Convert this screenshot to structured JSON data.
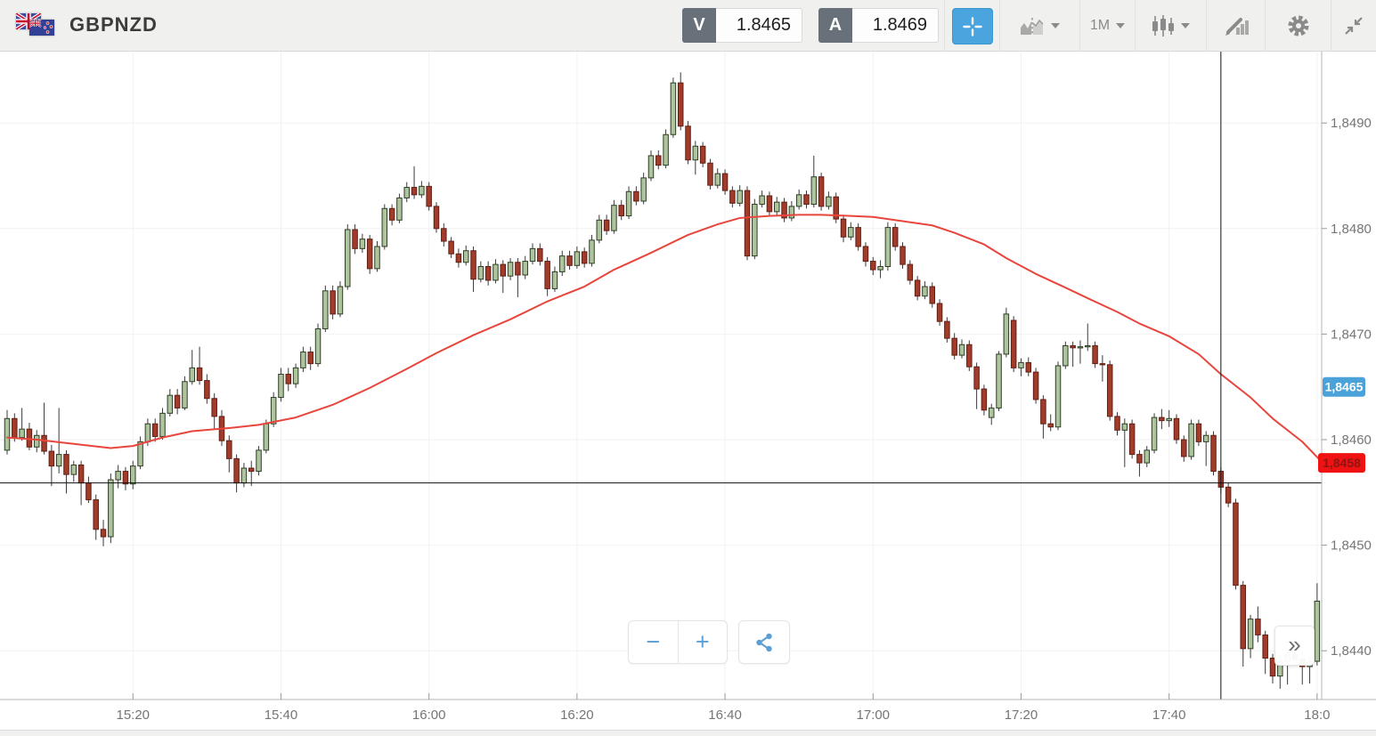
{
  "header": {
    "symbol": "GBPNZD",
    "bid_label": "V",
    "bid": "1.8465",
    "ask_label": "A",
    "ask": "1.8469"
  },
  "toolbar": {
    "timeframe_label": "1M",
    "icons": [
      "chart-style-icon",
      "timeframe-dropdown",
      "candlestick-style-icon",
      "drawing-tools-icon",
      "settings-gear-icon",
      "collapse-chart-icon"
    ]
  },
  "controls": {
    "zoom_out_label": "−",
    "zoom_in_label": "+",
    "share_icon": "share-icon",
    "collapse_label": "»"
  },
  "price_axis": {
    "labels": [
      "1,8490",
      "1,8480",
      "1,8470",
      "1,8460",
      "1,8450",
      "1,8440"
    ],
    "label_pips": [
      90,
      80,
      70,
      60,
      50,
      40
    ],
    "bid_badge": {
      "label": "1,8465",
      "pips": 65
    },
    "last_badge": {
      "label": "1,8458",
      "pips": 57.8
    }
  },
  "time_axis": {
    "labels": [
      "15:20",
      "15:40",
      "16:00",
      "16:20",
      "16:40",
      "17:00",
      "17:20",
      "17:40",
      "18:0"
    ],
    "indices": [
      17,
      37,
      57,
      77,
      97,
      117,
      137,
      157,
      177
    ]
  },
  "colors": {
    "accent_blue": "#4aa4dd",
    "quote_badge_gray": "#68717a",
    "candle_up_fill": "#adc49e",
    "candle_up_stroke": "#2f3d24",
    "candle_down_fill": "#a23b2a",
    "candle_down_stroke": "#5e2015",
    "wick": "#3a3a3a",
    "ma_line": "#e8463c",
    "marker_line": "#111111",
    "axis_text": "#757575",
    "grid_line": "#f2f2f1",
    "axis_line": "#b4b4b4",
    "bid_badge_bg": "#4aa2d9",
    "bid_badge_text": "#ffffff",
    "last_badge_bg": "#f01212",
    "last_badge_text": "#8f1512",
    "icon_gray": "#8a8a8a",
    "control_blue": "#5b9fd4"
  },
  "chart_data": {
    "type": "candlestick",
    "symbol": "GBPNZD",
    "interval": "1M",
    "start_time": "15:03",
    "end_time": "18:00",
    "pip_base": 1.84,
    "pip_size": 0.0001,
    "ylim": [
      1.8435,
      1.8497
    ],
    "grid": "on",
    "overlays": [
      "moving-average-red",
      "session-open-line",
      "vertical-time-marker"
    ],
    "open_line_pips": 55.9,
    "marker_index": 164,
    "candles_ohlc_pips": [
      [
        59.0,
        62.8,
        58.6,
        62.0
      ],
      [
        62.0,
        62.5,
        59.8,
        60.2
      ],
      [
        60.2,
        63.0,
        59.9,
        61.0
      ],
      [
        61.0,
        61.6,
        59.0,
        59.3
      ],
      [
        59.3,
        60.9,
        58.8,
        60.4
      ],
      [
        60.4,
        63.5,
        58.6,
        58.9
      ],
      [
        58.9,
        59.5,
        55.6,
        57.5
      ],
      [
        57.5,
        63.0,
        56.8,
        58.6
      ],
      [
        58.6,
        59.0,
        54.9,
        56.7
      ],
      [
        56.7,
        58.0,
        56.0,
        57.6
      ],
      [
        57.6,
        58.0,
        53.8,
        55.9
      ],
      [
        55.9,
        56.5,
        54.0,
        54.3
      ],
      [
        54.3,
        54.8,
        50.5,
        51.5
      ],
      [
        51.5,
        52.4,
        49.9,
        50.8
      ],
      [
        50.8,
        56.8,
        50.2,
        56.2
      ],
      [
        56.2,
        57.6,
        55.4,
        57.0
      ],
      [
        57.0,
        57.4,
        55.2,
        55.8
      ],
      [
        55.8,
        58.0,
        55.3,
        57.5
      ],
      [
        57.5,
        60.3,
        57.2,
        59.8
      ],
      [
        59.8,
        62.0,
        59.4,
        61.5
      ],
      [
        61.5,
        62.0,
        59.8,
        60.3
      ],
      [
        60.3,
        63.0,
        60.0,
        62.5
      ],
      [
        62.5,
        64.8,
        62.2,
        64.2
      ],
      [
        64.2,
        64.8,
        62.4,
        63.0
      ],
      [
        63.0,
        66.0,
        62.8,
        65.5
      ],
      [
        65.5,
        68.5,
        65.2,
        66.8
      ],
      [
        66.8,
        68.8,
        65.2,
        65.6
      ],
      [
        65.6,
        66.2,
        63.4,
        63.9
      ],
      [
        63.9,
        64.4,
        61.0,
        62.2
      ],
      [
        62.2,
        62.8,
        59.4,
        59.9
      ],
      [
        59.9,
        60.4,
        56.9,
        58.2
      ],
      [
        58.2,
        58.6,
        55.0,
        55.9
      ],
      [
        55.9,
        57.8,
        55.5,
        57.3
      ],
      [
        57.3,
        58.0,
        55.6,
        57.0
      ],
      [
        57.0,
        59.4,
        56.6,
        59.0
      ],
      [
        59.0,
        61.9,
        58.7,
        61.5
      ],
      [
        61.5,
        64.5,
        61.2,
        64.0
      ],
      [
        64.0,
        66.8,
        63.6,
        66.2
      ],
      [
        66.2,
        66.8,
        64.6,
        65.3
      ],
      [
        65.3,
        67.2,
        64.9,
        66.8
      ],
      [
        66.8,
        68.8,
        66.4,
        68.3
      ],
      [
        68.3,
        68.8,
        66.6,
        67.2
      ],
      [
        67.2,
        71.0,
        66.9,
        70.5
      ],
      [
        70.5,
        74.6,
        70.2,
        74.1
      ],
      [
        74.1,
        74.6,
        71.4,
        71.9
      ],
      [
        71.9,
        75.0,
        71.6,
        74.5
      ],
      [
        74.5,
        80.4,
        74.2,
        79.9
      ],
      [
        79.9,
        80.4,
        77.6,
        78.1
      ],
      [
        78.1,
        79.5,
        77.7,
        79.0
      ],
      [
        79.0,
        79.4,
        75.7,
        76.2
      ],
      [
        76.2,
        78.8,
        75.9,
        78.3
      ],
      [
        78.3,
        82.3,
        78.0,
        81.9
      ],
      [
        81.9,
        82.3,
        80.3,
        80.8
      ],
      [
        80.8,
        83.3,
        80.5,
        82.9
      ],
      [
        82.9,
        84.4,
        82.5,
        83.9
      ],
      [
        83.9,
        85.9,
        82.8,
        83.2
      ],
      [
        83.2,
        84.5,
        82.9,
        84.0
      ],
      [
        84.0,
        84.4,
        81.7,
        82.1
      ],
      [
        82.1,
        82.5,
        79.6,
        80.0
      ],
      [
        80.0,
        80.5,
        78.3,
        78.8
      ],
      [
        78.8,
        79.2,
        77.2,
        77.6
      ],
      [
        77.6,
        78.1,
        76.3,
        76.8
      ],
      [
        76.8,
        78.4,
        76.5,
        77.9
      ],
      [
        77.9,
        78.3,
        74.0,
        75.2
      ],
      [
        75.2,
        76.9,
        74.9,
        76.4
      ],
      [
        76.4,
        76.9,
        74.6,
        75.1
      ],
      [
        75.1,
        77.1,
        74.8,
        76.6
      ],
      [
        76.6,
        77.0,
        73.9,
        75.5
      ],
      [
        75.5,
        77.2,
        75.1,
        76.8
      ],
      [
        76.8,
        77.2,
        73.5,
        75.6
      ],
      [
        75.6,
        77.4,
        75.2,
        76.9
      ],
      [
        76.9,
        78.6,
        76.6,
        78.1
      ],
      [
        78.1,
        78.6,
        76.5,
        76.9
      ],
      [
        76.9,
        77.3,
        73.6,
        74.3
      ],
      [
        74.3,
        76.4,
        74.0,
        75.9
      ],
      [
        75.9,
        77.9,
        75.5,
        77.4
      ],
      [
        77.4,
        77.9,
        76.1,
        76.5
      ],
      [
        76.5,
        78.3,
        76.2,
        77.8
      ],
      [
        77.8,
        78.2,
        76.3,
        76.7
      ],
      [
        76.7,
        79.4,
        76.4,
        78.9
      ],
      [
        78.9,
        81.3,
        78.6,
        80.8
      ],
      [
        80.8,
        81.3,
        79.4,
        79.8
      ],
      [
        79.8,
        82.7,
        79.5,
        82.2
      ],
      [
        82.2,
        82.7,
        80.8,
        81.2
      ],
      [
        81.2,
        84.0,
        80.9,
        83.5
      ],
      [
        83.5,
        84.0,
        82.2,
        82.6
      ],
      [
        82.6,
        85.3,
        82.3,
        84.8
      ],
      [
        84.8,
        87.4,
        84.5,
        86.9
      ],
      [
        86.9,
        87.4,
        85.6,
        86.0
      ],
      [
        86.0,
        89.4,
        85.7,
        88.9
      ],
      [
        88.9,
        94.3,
        88.6,
        93.8
      ],
      [
        93.8,
        94.8,
        89.3,
        89.7
      ],
      [
        89.7,
        90.2,
        86.1,
        86.5
      ],
      [
        86.5,
        88.3,
        85.1,
        87.8
      ],
      [
        87.8,
        88.2,
        85.8,
        86.2
      ],
      [
        86.2,
        86.6,
        83.7,
        84.1
      ],
      [
        84.1,
        85.7,
        83.8,
        85.2
      ],
      [
        85.2,
        85.6,
        83.2,
        83.6
      ],
      [
        83.6,
        84.0,
        82.0,
        82.4
      ],
      [
        82.4,
        84.1,
        82.1,
        83.6
      ],
      [
        83.6,
        84.0,
        77.0,
        77.4
      ],
      [
        77.4,
        82.8,
        77.1,
        82.3
      ],
      [
        82.3,
        83.6,
        82.0,
        83.1
      ],
      [
        83.1,
        83.5,
        81.2,
        81.6
      ],
      [
        81.6,
        83.0,
        81.3,
        82.5
      ],
      [
        82.5,
        82.9,
        80.6,
        81.0
      ],
      [
        81.0,
        82.6,
        80.7,
        82.1
      ],
      [
        82.1,
        83.7,
        81.8,
        83.2
      ],
      [
        83.2,
        83.6,
        81.9,
        82.3
      ],
      [
        82.3,
        86.9,
        82.0,
        84.9
      ],
      [
        84.9,
        85.3,
        81.7,
        82.1
      ],
      [
        82.1,
        83.5,
        81.8,
        83.0
      ],
      [
        83.0,
        83.4,
        80.5,
        80.9
      ],
      [
        80.9,
        81.3,
        78.7,
        79.2
      ],
      [
        79.2,
        80.6,
        78.9,
        80.1
      ],
      [
        80.1,
        80.5,
        77.9,
        78.3
      ],
      [
        78.3,
        78.7,
        76.4,
        76.9
      ],
      [
        76.9,
        77.3,
        75.6,
        76.1
      ],
      [
        76.1,
        77.0,
        75.3,
        76.4
      ],
      [
        76.4,
        80.6,
        76.0,
        80.1
      ],
      [
        80.1,
        80.5,
        77.9,
        78.3
      ],
      [
        78.3,
        78.7,
        76.2,
        76.6
      ],
      [
        76.6,
        77.0,
        74.7,
        75.1
      ],
      [
        75.1,
        75.5,
        73.2,
        73.6
      ],
      [
        73.6,
        75.0,
        73.3,
        74.5
      ],
      [
        74.5,
        74.9,
        72.5,
        72.9
      ],
      [
        72.9,
        73.3,
        70.8,
        71.2
      ],
      [
        71.2,
        71.6,
        69.2,
        69.6
      ],
      [
        69.6,
        70.1,
        67.6,
        68.0
      ],
      [
        68.0,
        69.5,
        67.7,
        69.0
      ],
      [
        69.0,
        69.4,
        66.5,
        66.9
      ],
      [
        66.9,
        67.3,
        62.9,
        64.8
      ],
      [
        64.8,
        65.2,
        62.3,
        62.8
      ],
      [
        62.1,
        63.4,
        61.4,
        63.0
      ],
      [
        63.0,
        68.4,
        62.7,
        68.1
      ],
      [
        68.1,
        72.5,
        67.8,
        71.9
      ],
      [
        71.3,
        71.7,
        66.4,
        66.8
      ],
      [
        66.8,
        67.7,
        66.0,
        67.3
      ],
      [
        67.3,
        67.8,
        66.0,
        66.4
      ],
      [
        66.4,
        66.8,
        63.4,
        63.8
      ],
      [
        63.8,
        64.2,
        60.1,
        61.5
      ],
      [
        61.5,
        62.4,
        60.8,
        61.2
      ],
      [
        61.2,
        67.4,
        60.9,
        67.0
      ],
      [
        67.0,
        69.3,
        66.7,
        68.9
      ],
      [
        68.9,
        69.3,
        66.9,
        68.7
      ],
      [
        68.7,
        69.4,
        67.2,
        68.8
      ],
      [
        68.8,
        71.0,
        68.4,
        68.9
      ],
      [
        68.9,
        69.3,
        66.8,
        67.2
      ],
      [
        67.2,
        68.0,
        65.5,
        67.1
      ],
      [
        67.1,
        67.5,
        61.8,
        62.2
      ],
      [
        62.2,
        62.6,
        60.4,
        60.9
      ],
      [
        60.9,
        62.0,
        57.4,
        61.5
      ],
      [
        61.5,
        61.9,
        58.2,
        58.6
      ],
      [
        58.6,
        59.0,
        56.5,
        57.8
      ],
      [
        57.8,
        59.4,
        57.4,
        59.0
      ],
      [
        59.0,
        62.5,
        58.7,
        62.1
      ],
      [
        62.1,
        62.9,
        61.0,
        61.8
      ],
      [
        61.8,
        62.8,
        61.2,
        62.0
      ],
      [
        62.0,
        62.4,
        59.6,
        60.0
      ],
      [
        60.0,
        60.4,
        57.9,
        58.4
      ],
      [
        58.4,
        61.9,
        58.1,
        61.5
      ],
      [
        61.5,
        61.9,
        59.4,
        59.8
      ],
      [
        59.8,
        60.8,
        57.5,
        60.4
      ],
      [
        60.4,
        60.8,
        56.6,
        57.0
      ],
      [
        57.0,
        57.4,
        54.9,
        55.5
      ],
      [
        55.5,
        55.9,
        53.6,
        54.0
      ],
      [
        54.0,
        54.4,
        45.8,
        46.2
      ],
      [
        46.2,
        46.6,
        38.5,
        40.2
      ],
      [
        40.2,
        43.4,
        39.3,
        43.0
      ],
      [
        43.0,
        44.2,
        40.8,
        41.5
      ],
      [
        41.5,
        41.9,
        37.8,
        39.3
      ],
      [
        39.3,
        39.7,
        36.9,
        37.6
      ],
      [
        37.6,
        39.4,
        36.4,
        39.0
      ],
      [
        39.0,
        39.9,
        36.8,
        39.6
      ],
      [
        39.6,
        41.2,
        38.6,
        39.2
      ],
      [
        39.2,
        39.8,
        36.8,
        38.5
      ],
      [
        38.5,
        39.5,
        36.9,
        39.0
      ],
      [
        39.0,
        46.4,
        38.6,
        44.7
      ]
    ],
    "ma_points": [
      [
        0,
        60.2
      ],
      [
        4,
        60.0
      ],
      [
        9,
        59.6
      ],
      [
        14,
        59.2
      ],
      [
        17,
        59.4
      ],
      [
        21,
        60.2
      ],
      [
        25,
        60.8
      ],
      [
        30,
        61.1
      ],
      [
        34,
        61.4
      ],
      [
        39,
        62.1
      ],
      [
        44,
        63.3
      ],
      [
        49,
        64.9
      ],
      [
        54,
        66.7
      ],
      [
        58,
        68.2
      ],
      [
        63,
        69.9
      ],
      [
        68,
        71.4
      ],
      [
        73,
        73.1
      ],
      [
        78,
        74.5
      ],
      [
        82,
        76.1
      ],
      [
        87,
        77.7
      ],
      [
        92,
        79.4
      ],
      [
        96,
        80.4
      ],
      [
        99,
        81.0
      ],
      [
        103,
        81.2
      ],
      [
        107,
        81.3
      ],
      [
        110,
        81.3
      ],
      [
        114,
        81.2
      ],
      [
        117,
        81.1
      ],
      [
        121,
        80.7
      ],
      [
        125,
        80.3
      ],
      [
        128,
        79.6
      ],
      [
        132,
        78.5
      ],
      [
        135,
        77.2
      ],
      [
        139,
        75.7
      ],
      [
        143,
        74.4
      ],
      [
        146,
        73.4
      ],
      [
        150,
        72.1
      ],
      [
        153,
        71.0
      ],
      [
        157,
        69.8
      ],
      [
        161,
        68.1
      ],
      [
        164,
        66.2
      ],
      [
        168,
        64.0
      ],
      [
        171,
        62.0
      ],
      [
        175,
        59.8
      ],
      [
        178,
        57.9
      ]
    ]
  }
}
